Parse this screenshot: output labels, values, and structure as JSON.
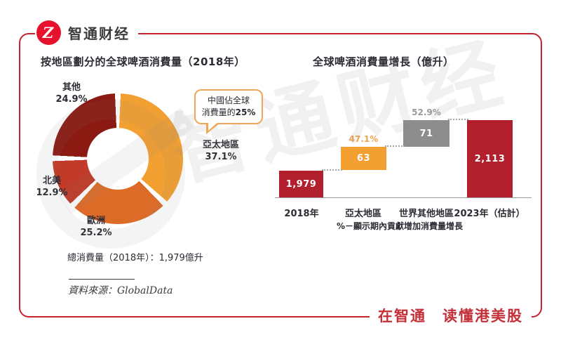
{
  "header": {
    "brand": "智通财经",
    "logo_glyph": "Z"
  },
  "footer": {
    "slogan": "在智通　读懂港美股"
  },
  "watermark": {
    "text": "智通财经"
  },
  "theme": {
    "frame-red": "#C5242E",
    "logo-red": "#E8112D",
    "slogan-red": "#C42F38",
    "title-dark": "#2B2B33",
    "axis-gray": "#9A9A9A"
  },
  "chart_data": [
    {
      "type": "pie",
      "donut": true,
      "title": "按地區劃分的全球啤酒消費量（2018年）",
      "sectors": [
        {
          "label": "亞太地區",
          "value": 37.1,
          "pct_text": "37.1%",
          "color": "#F2A032"
        },
        {
          "label": "歐洲",
          "value": 25.2,
          "pct_text": "25.2%",
          "color": "#DC6B28"
        },
        {
          "label": "北美",
          "value": 12.9,
          "pct_text": "12.9%",
          "color": "#C23A28"
        },
        {
          "label": "其他",
          "value": 24.9,
          "pct_text": "24.9%",
          "color": "#8B1A12"
        }
      ],
      "start_angle_deg": 0,
      "direction": "clockwise",
      "callout": {
        "line1": "中國佔全球",
        "line2_prefix": "消費量的",
        "line2_bold": "25%"
      },
      "total_note": "總消費量（2018年）：1,979億升",
      "source": "資料來源：GlobalData"
    },
    {
      "type": "bar",
      "subtype": "waterfall",
      "title": "全球啤酒消費量增長（億升）",
      "categories": [
        "2018年",
        "亞太地區",
        "世界其他地區",
        "2023年（估計）"
      ],
      "values": [
        1979,
        63,
        71,
        2113
      ],
      "value_labels": [
        "1,979",
        "63",
        "71",
        "2,113"
      ],
      "pct_labels": [
        "",
        "47.1%",
        "52.9%",
        ""
      ],
      "colors": [
        "#B2202E",
        "#F2A032",
        "#8D8D8D",
        "#B2202E"
      ],
      "pct_label_colors": [
        "",
        "#F0A448",
        "#9A9A9A",
        ""
      ],
      "footnote": "%－顯示期內貢獻增加消費量增長",
      "grid": false,
      "legend": false
    }
  ]
}
